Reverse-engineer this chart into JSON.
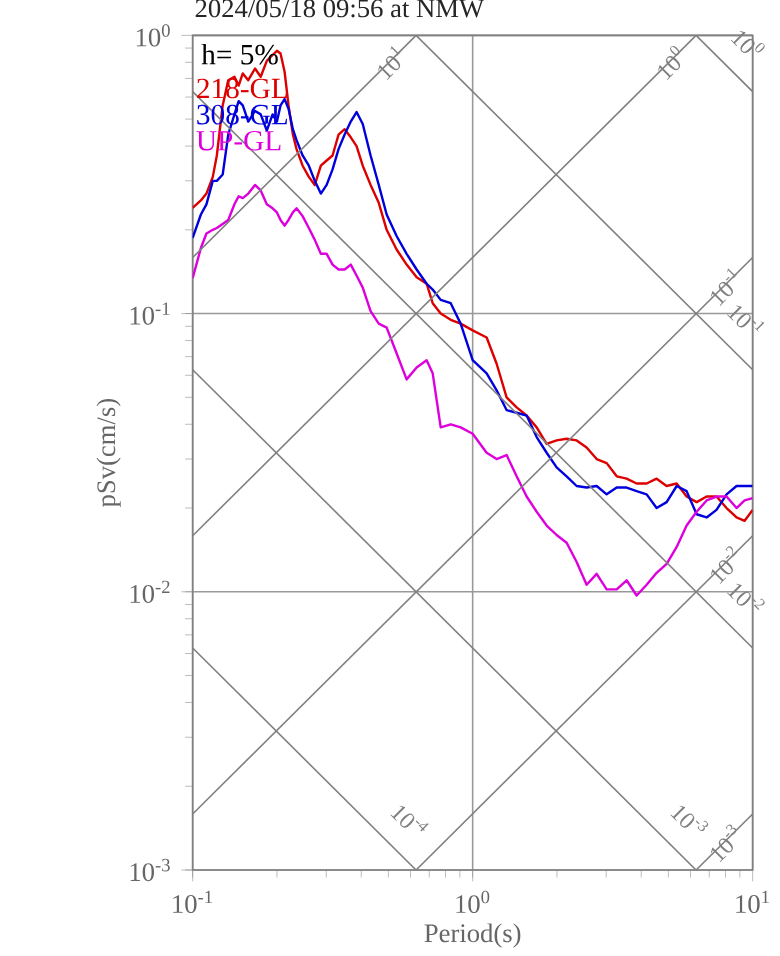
{
  "chart_data": {
    "type": "line",
    "title": "2024/05/18 09:56 at NMW",
    "xlabel": "Period(s)",
    "ylabel": "pSv(cm/s)",
    "log": "xy",
    "grid": true,
    "legend": "top left",
    "marker": "none",
    "line_style": "solid",
    "annotations": [
      "h= 5%"
    ],
    "xlim": [
      0.1,
      10
    ],
    "ylim": [
      0.001,
      1
    ],
    "xticks": [
      {
        "value": 0.1,
        "label": "10$^{-1}$"
      },
      {
        "value": 1,
        "label": "10$^{0}$"
      },
      {
        "value": 10,
        "label": "10$^{1}$"
      }
    ],
    "yticks": [
      {
        "value": 0.001,
        "label": "10$^{-3}$"
      },
      {
        "value": 0.01,
        "label": "10$^{-2}$"
      },
      {
        "value": 0.1,
        "label": "10$^{-1}$"
      },
      {
        "value": 1,
        "label": "10$^{0}$"
      }
    ],
    "x": [
      0.1,
      0.107,
      0.112,
      0.118,
      0.122,
      0.128,
      0.134,
      0.141,
      0.146,
      0.151,
      0.158,
      0.167,
      0.175,
      0.184,
      0.193,
      0.2,
      0.206,
      0.213,
      0.22,
      0.228,
      0.235,
      0.247,
      0.26,
      0.273,
      0.287,
      0.301,
      0.316,
      0.332,
      0.349,
      0.367,
      0.385,
      0.405,
      0.432,
      0.462,
      0.493,
      0.535,
      0.581,
      0.631,
      0.685,
      0.72,
      0.769,
      0.835,
      0.906,
      1,
      1.122,
      1.218,
      1.322,
      1.436,
      1.559,
      1.693,
      1.838,
      1.995,
      2.166,
      2.352,
      2.553,
      2.773,
      3.011,
      3.27,
      3.548,
      3.852,
      4.182,
      4.54,
      4.93,
      5.354,
      5.81,
      6.31,
      6.85,
      7.43,
      8.07,
      8.76,
      9.36,
      10
    ],
    "series": [
      {
        "name": "218-GL",
        "color": "#dd0000",
        "values": [
          0.24,
          0.255,
          0.27,
          0.31,
          0.37,
          0.56,
          0.69,
          0.71,
          0.66,
          0.73,
          0.69,
          0.76,
          0.71,
          0.81,
          0.85,
          0.88,
          0.86,
          0.74,
          0.56,
          0.44,
          0.39,
          0.34,
          0.31,
          0.29,
          0.34,
          0.355,
          0.37,
          0.44,
          0.46,
          0.43,
          0.4,
          0.34,
          0.29,
          0.25,
          0.2,
          0.17,
          0.15,
          0.135,
          0.128,
          0.109,
          0.1,
          0.095,
          0.092,
          0.087,
          0.082,
          0.066,
          0.05,
          0.046,
          0.043,
          0.039,
          0.034,
          0.035,
          0.0355,
          0.035,
          0.033,
          0.03,
          0.029,
          0.026,
          0.0255,
          0.0245,
          0.0245,
          0.0255,
          0.024,
          0.0245,
          0.022,
          0.021,
          0.022,
          0.022,
          0.02,
          0.0185,
          0.018,
          0.0197
        ]
      },
      {
        "name": "308-GL",
        "color": "#0000dd",
        "values": [
          0.187,
          0.227,
          0.247,
          0.3,
          0.3,
          0.316,
          0.44,
          0.52,
          0.58,
          0.56,
          0.49,
          0.535,
          0.52,
          0.455,
          0.52,
          0.49,
          0.56,
          0.59,
          0.545,
          0.46,
          0.42,
          0.37,
          0.34,
          0.3,
          0.27,
          0.29,
          0.33,
          0.39,
          0.44,
          0.49,
          0.53,
          0.48,
          0.37,
          0.29,
          0.227,
          0.19,
          0.164,
          0.144,
          0.128,
          0.122,
          0.112,
          0.109,
          0.092,
          0.068,
          0.061,
          0.053,
          0.045,
          0.044,
          0.043,
          0.036,
          0.0316,
          0.028,
          0.026,
          0.024,
          0.0237,
          0.024,
          0.0224,
          0.0237,
          0.0237,
          0.023,
          0.0224,
          0.02,
          0.021,
          0.024,
          0.023,
          0.019,
          0.0185,
          0.0197,
          0.0224,
          0.024,
          0.024,
          0.024
        ]
      },
      {
        "name": "UP-GL",
        "color": "#dd00dd",
        "values": [
          0.134,
          0.172,
          0.194,
          0.2,
          0.203,
          0.21,
          0.217,
          0.247,
          0.264,
          0.26,
          0.27,
          0.29,
          0.277,
          0.247,
          0.239,
          0.231,
          0.217,
          0.207,
          0.217,
          0.231,
          0.239,
          0.224,
          0.203,
          0.184,
          0.164,
          0.164,
          0.15,
          0.144,
          0.144,
          0.15,
          0.137,
          0.124,
          0.102,
          0.092,
          0.089,
          0.072,
          0.058,
          0.064,
          0.068,
          0.061,
          0.039,
          0.04,
          0.039,
          0.037,
          0.0316,
          0.03,
          0.031,
          0.026,
          0.022,
          0.0194,
          0.0173,
          0.016,
          0.015,
          0.0128,
          0.0106,
          0.0116,
          0.0102,
          0.0102,
          0.011,
          0.0097,
          0.0106,
          0.0117,
          0.0126,
          0.0145,
          0.0173,
          0.0194,
          0.0213,
          0.022,
          0.022,
          0.02,
          0.0213,
          0.0217
        ]
      },
      {
        "name": "10$^{-3}$",
        "color": "#808080",
        "x": [
          6.28,
          10
        ],
        "values": [
          0.001,
          0.00159
        ]
      },
      {
        "name": "10$^{-2}$",
        "color": "#808080",
        "x": [
          0.628,
          10
        ],
        "values": [
          0.001,
          0.0159
        ]
      },
      {
        "name": "10$^{-1}$",
        "color": "#808080",
        "x": [
          0.1,
          10
        ],
        "values": [
          0.00159,
          0.159
        ]
      },
      {
        "name": "10$^{0}$",
        "color": "#808080",
        "x": [
          0.1,
          6.28
        ],
        "values": [
          0.0159,
          1
        ]
      },
      {
        "name": "10$^{1}$",
        "color": "#808080",
        "x": [
          0.1,
          0.628
        ],
        "values": [
          0.159,
          1
        ]
      },
      {
        "name": "10$^{-4}$",
        "color": "#808080",
        "x": [
          0.1,
          0.628
        ],
        "values": [
          0.00628,
          0.001
        ]
      },
      {
        "name": "10$^{-3}$",
        "color": "#808080",
        "x": [
          0.1,
          6.28
        ],
        "values": [
          0.0628,
          0.001
        ]
      },
      {
        "name": "10$^{-2}$",
        "color": "#808080",
        "x": [
          0.1,
          10
        ],
        "values": [
          0.628,
          0.00628
        ]
      },
      {
        "name": "10$^{-1}$",
        "color": "#808080",
        "x": [
          0.628,
          10
        ],
        "values": [
          1,
          0.0628
        ]
      },
      {
        "name": "10$^{0}$",
        "color": "#808080",
        "x": [
          6.28,
          10
        ],
        "values": [
          1,
          0.628
        ]
      }
    ]
  }
}
